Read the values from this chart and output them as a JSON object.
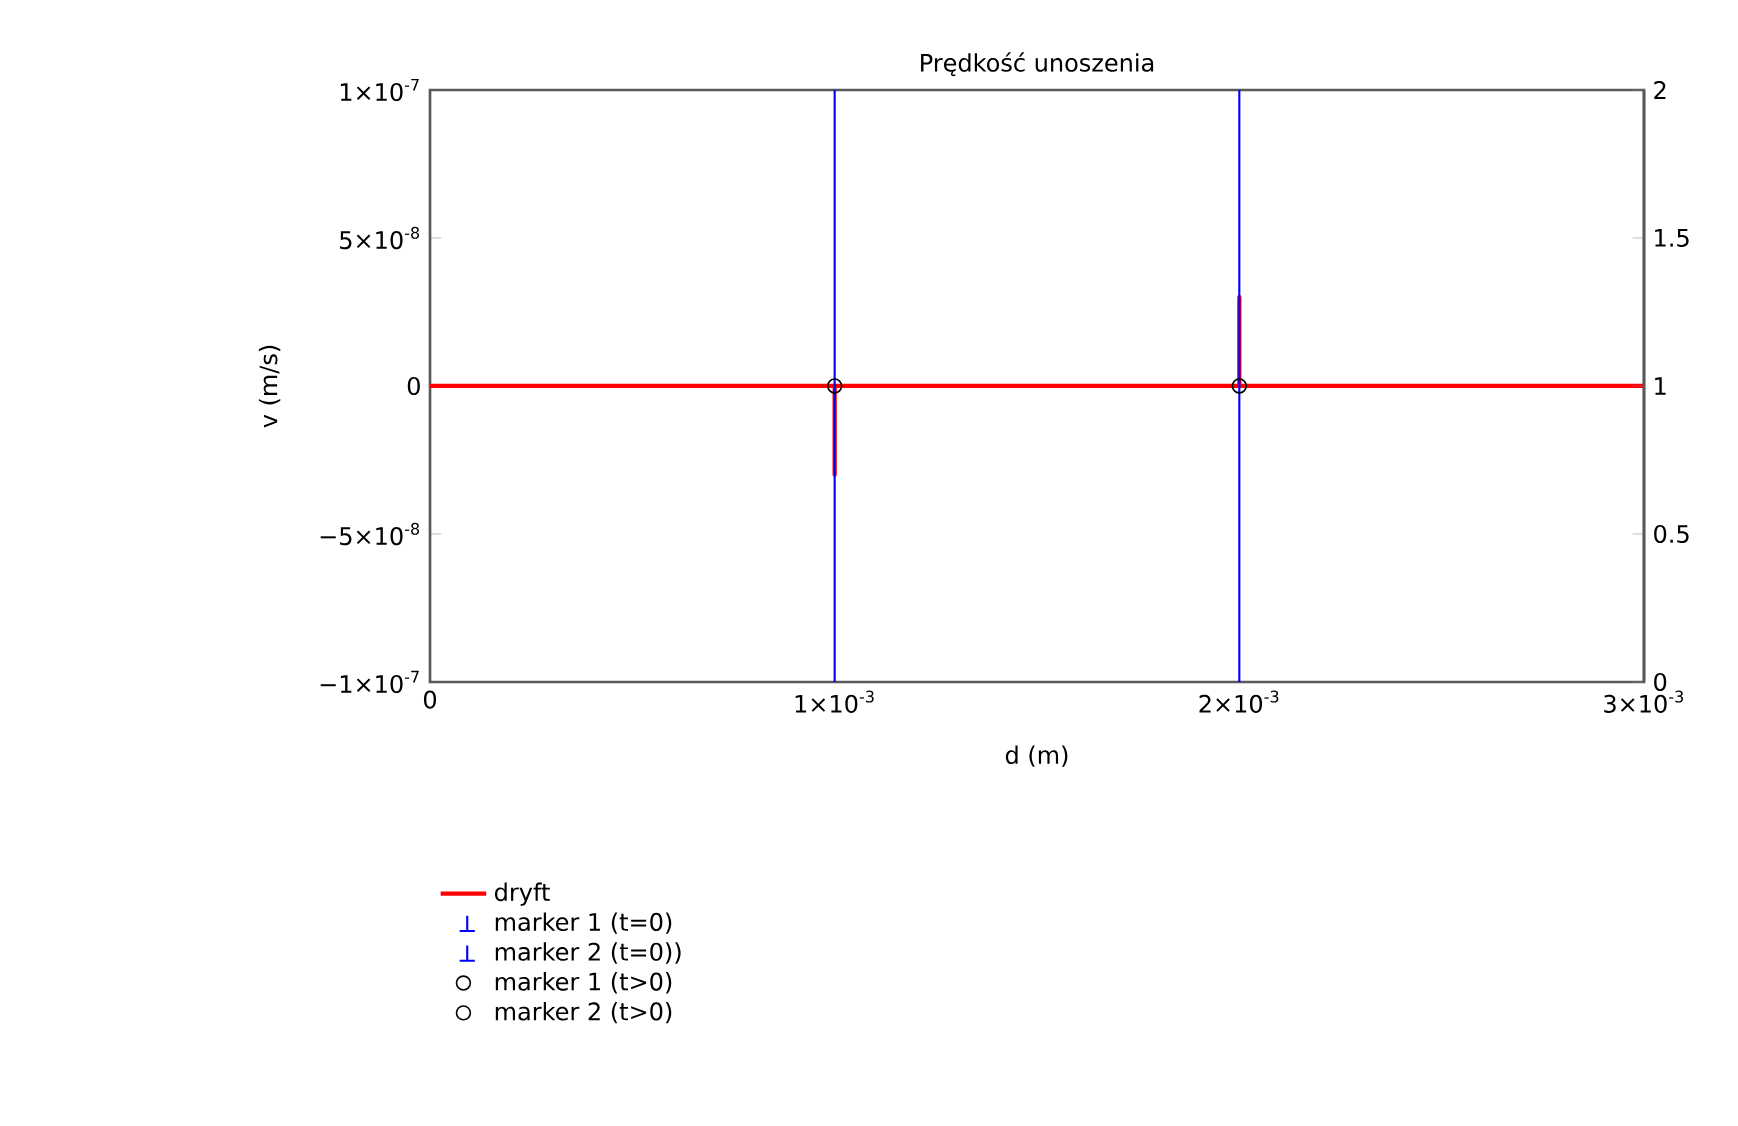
{
  "chart_data": {
    "type": "line",
    "title": "Prędkość unoszenia",
    "xlabel": "d (m)",
    "ylabel": "v (m/s)",
    "xlim": [
      0,
      0.003
    ],
    "xticks": [
      0,
      {
        "value": 0.001,
        "label": "1×10$^{-3}$"
      },
      {
        "value": 0.002,
        "label": "2×10$^{-3}$"
      },
      {
        "value": 0.003,
        "label": "3×10$^{-3}$"
      }
    ],
    "ylim": [
      -1e-07,
      1e-07
    ],
    "yticks": [
      {
        "value": -1e-07,
        "label": "−1×10$^{-7}$"
      },
      {
        "value": -5e-08,
        "label": "−5×10$^{-8}$"
      },
      0,
      {
        "value": 5e-08,
        "label": "5×10$^{-8}$"
      },
      {
        "value": 1e-07,
        "label": "1×10$^{-7}$"
      }
    ],
    "y2lim": [
      0,
      2
    ],
    "y2ticks": [
      0,
      0.5,
      1,
      1.5,
      2
    ],
    "grid": false,
    "legend": "bottom",
    "ref_lines": [
      {
        "axis": "x",
        "value": 0.001,
        "label": "marker 1 (t=0)",
        "color": "#0000ff"
      },
      {
        "axis": "x",
        "value": 0.002,
        "label": "marker 2 (t=0))",
        "color": "#0000ff"
      }
    ],
    "series": [
      {
        "name": "dryft",
        "color": "#ff0000",
        "x": [
          0,
          0.001,
          0.001,
          0.001,
          0.002,
          0.002,
          0.002,
          0.003
        ],
        "values": [
          0,
          0,
          -3e-08,
          0,
          0,
          3e-08,
          0,
          0
        ]
      },
      {
        "name": "marker 1 (t>0)",
        "type": "scatter",
        "marker": "circle",
        "color": "#000000",
        "x": [
          0.001
        ],
        "values": [
          0
        ]
      },
      {
        "name": "marker 2 (t>0)",
        "type": "scatter",
        "marker": "circle",
        "color": "#000000",
        "x": [
          0.002
        ],
        "values": [
          0
        ]
      }
    ]
  }
}
